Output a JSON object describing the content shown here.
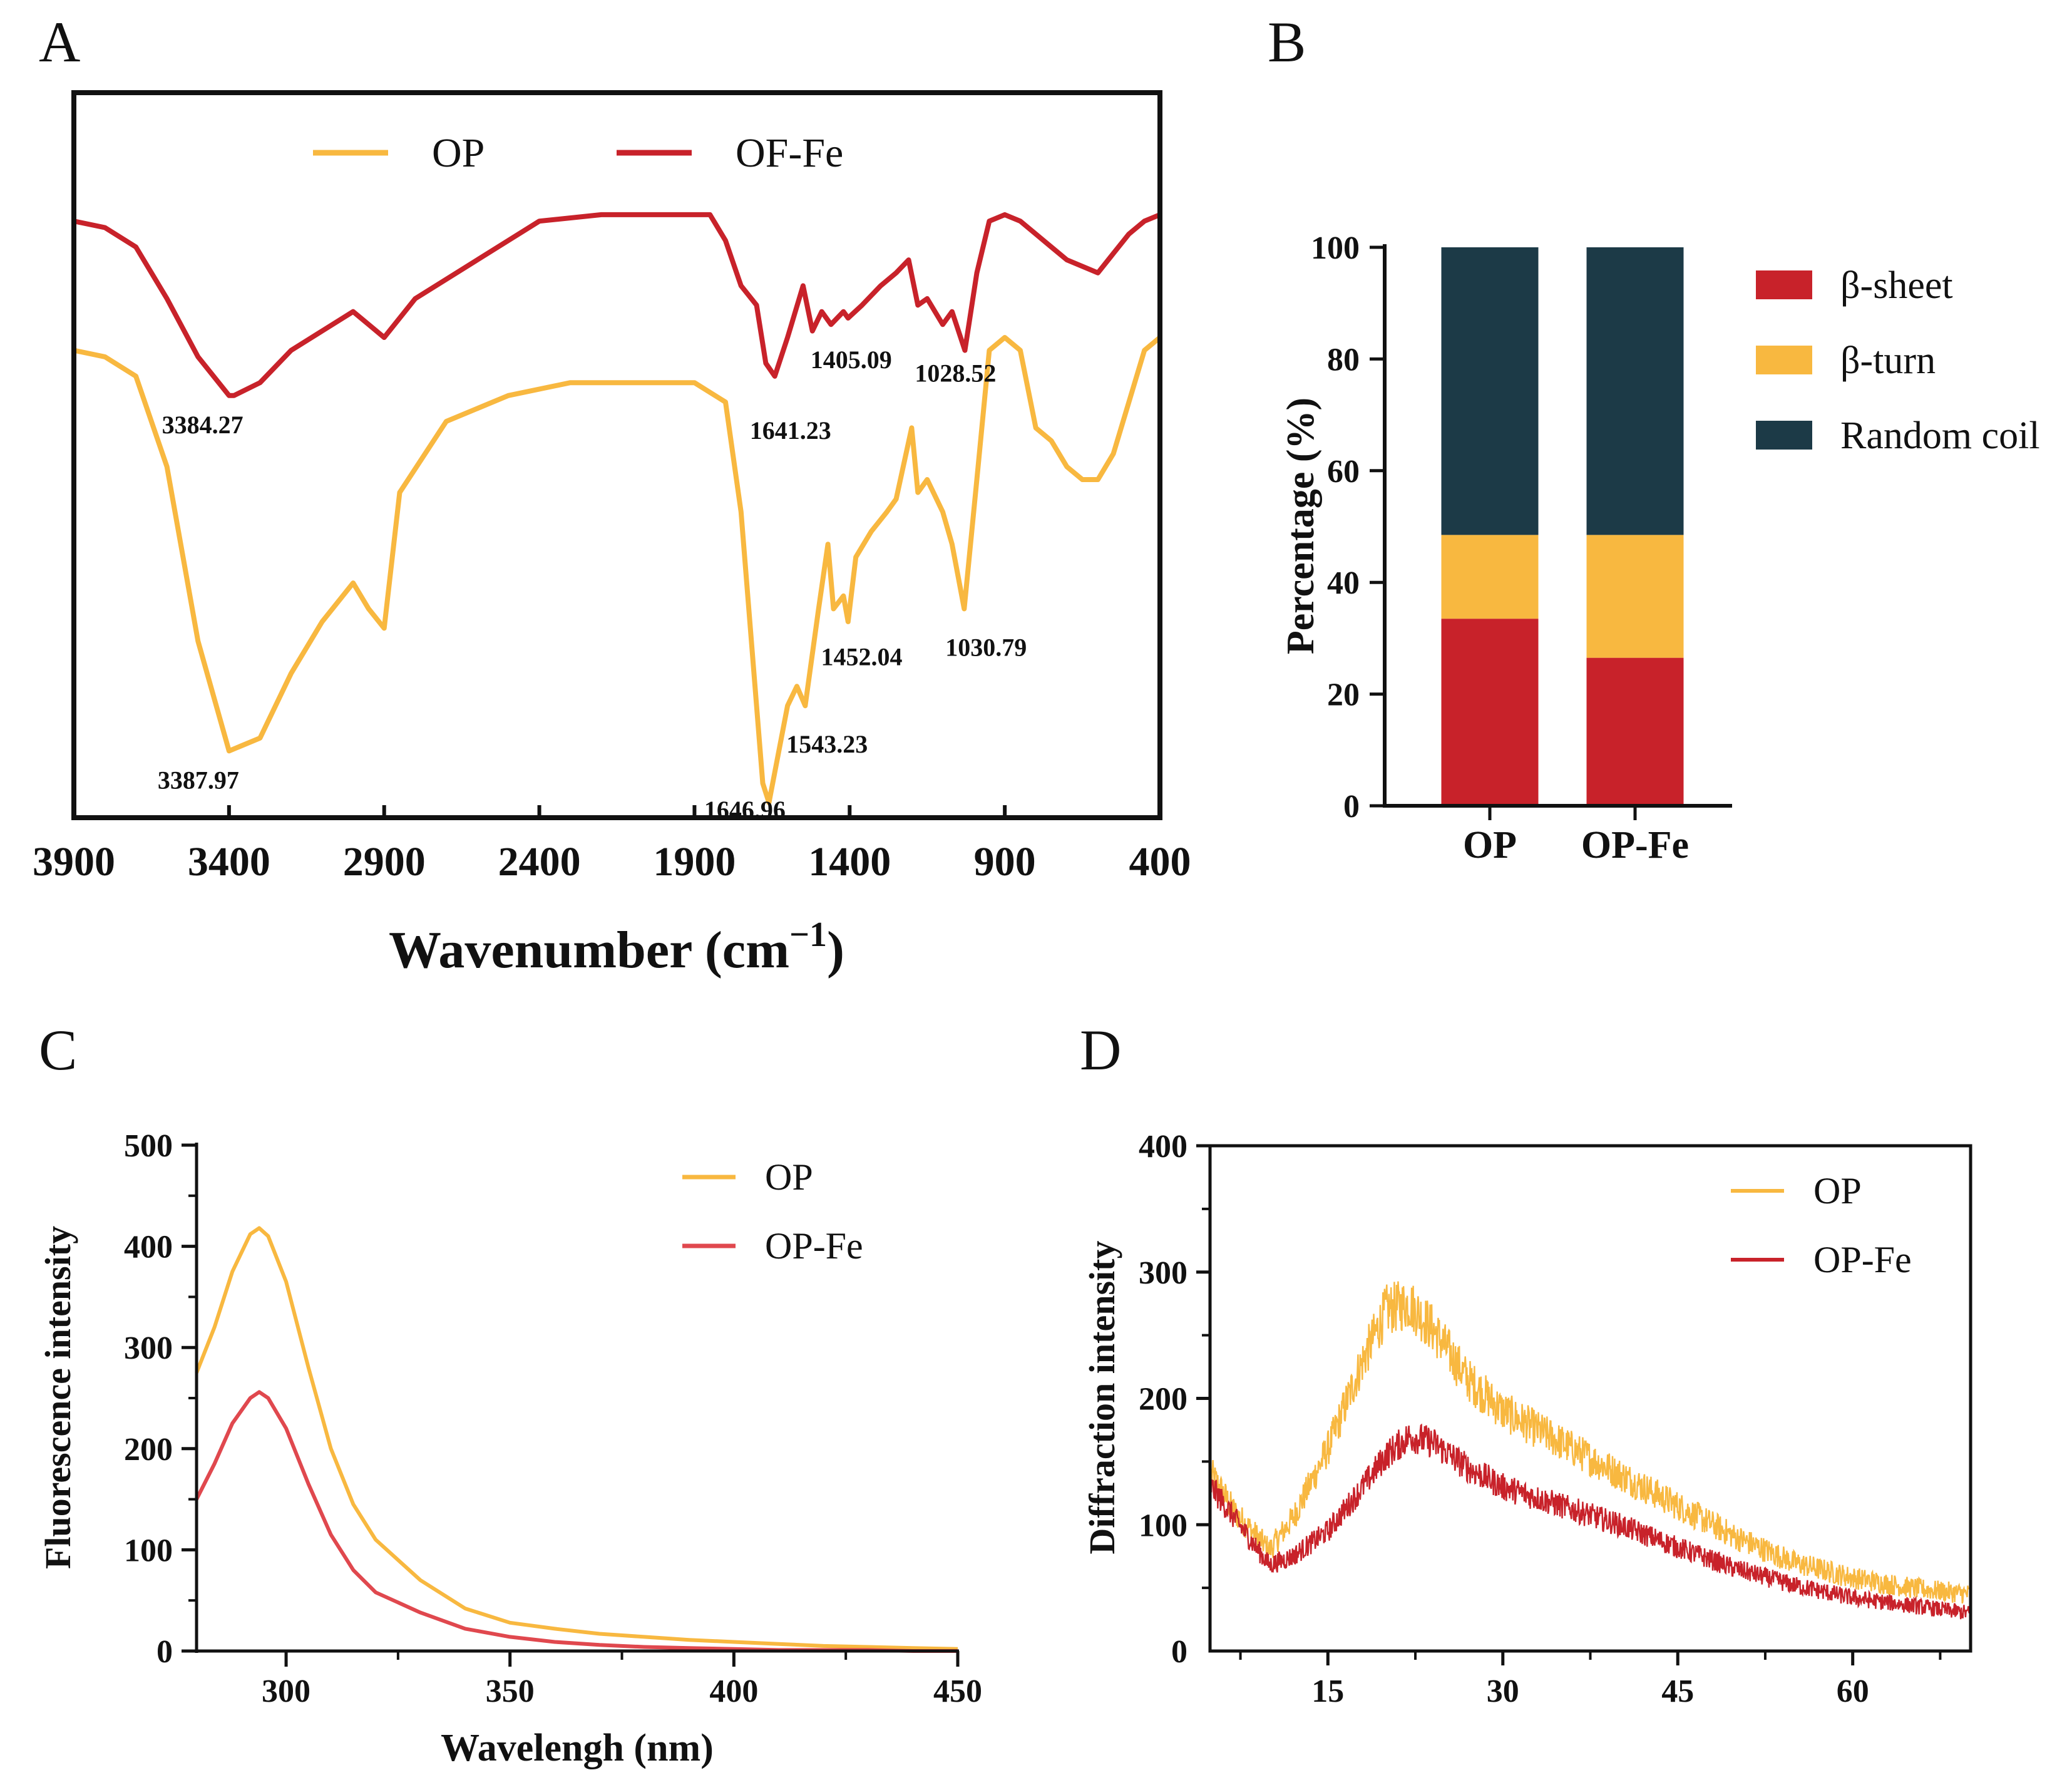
{
  "colors": {
    "op": "#F8B840",
    "opfe": "#C8222A",
    "opfe_c": "#E0484E",
    "coil": "#1C3A47",
    "axis": "#111111"
  },
  "chart_data": [
    {
      "panel": "A",
      "type": "line",
      "xlabel": "Wavenumber (cm",
      "xlabel_sup": "−1",
      "xlabel_close": ")",
      "xlim": [
        3900,
        400
      ],
      "xticks": [
        3900,
        3400,
        2900,
        2400,
        1900,
        1400,
        900,
        400
      ],
      "ylim": [
        0,
        100
      ],
      "legend": [
        {
          "name": "OP",
          "color": "#F8B840"
        },
        {
          "name": "OF-Fe",
          "color": "#C8222A"
        }
      ],
      "series": [
        {
          "name": "OP",
          "color": "#F8B840",
          "points": [
            [
              3900,
              70
            ],
            [
              3800,
              69
            ],
            [
              3700,
              66
            ],
            [
              3600,
              52
            ],
            [
              3500,
              25
            ],
            [
              3400,
              8
            ],
            [
              3300,
              10
            ],
            [
              3200,
              20
            ],
            [
              3100,
              28
            ],
            [
              3000,
              34
            ],
            [
              2950,
              30
            ],
            [
              2900,
              27
            ],
            [
              2850,
              48
            ],
            [
              2700,
              59
            ],
            [
              2500,
              63
            ],
            [
              2300,
              65
            ],
            [
              2100,
              65
            ],
            [
              1900,
              65
            ],
            [
              1800,
              62
            ],
            [
              1750,
              45
            ],
            [
              1700,
              15
            ],
            [
              1680,
              3
            ],
            [
              1660,
              0
            ],
            [
              1640,
              5
            ],
            [
              1600,
              15
            ],
            [
              1570,
              18
            ],
            [
              1543.23,
              15
            ],
            [
              1500,
              30
            ],
            [
              1470,
              40
            ],
            [
              1452.04,
              30
            ],
            [
              1420,
              32
            ],
            [
              1405,
              28
            ],
            [
              1380,
              38
            ],
            [
              1330,
              42
            ],
            [
              1280,
              45
            ],
            [
              1250,
              47
            ],
            [
              1200,
              58
            ],
            [
              1180,
              48
            ],
            [
              1150,
              50
            ],
            [
              1100,
              45
            ],
            [
              1070,
              40
            ],
            [
              1030.79,
              30
            ],
            [
              990,
              50
            ],
            [
              950,
              70
            ],
            [
              900,
              72
            ],
            [
              850,
              70
            ],
            [
              800,
              58
            ],
            [
              750,
              56
            ],
            [
              700,
              52
            ],
            [
              650,
              50
            ],
            [
              600,
              50
            ],
            [
              550,
              54
            ],
            [
              500,
              62
            ],
            [
              450,
              70
            ],
            [
              400,
              72
            ]
          ]
        },
        {
          "name": "OF-Fe",
          "color": "#C8222A",
          "points": [
            [
              3900,
              90
            ],
            [
              3800,
              89
            ],
            [
              3700,
              86
            ],
            [
              3600,
              78
            ],
            [
              3500,
              69
            ],
            [
              3400,
              63
            ],
            [
              3384.27,
              63
            ],
            [
              3300,
              65
            ],
            [
              3200,
              70
            ],
            [
              3100,
              73
            ],
            [
              3000,
              76
            ],
            [
              2950,
              74
            ],
            [
              2900,
              72
            ],
            [
              2800,
              78
            ],
            [
              2600,
              84
            ],
            [
              2400,
              90
            ],
            [
              2200,
              91
            ],
            [
              2000,
              91
            ],
            [
              1850,
              91
            ],
            [
              1800,
              87
            ],
            [
              1750,
              80
            ],
            [
              1700,
              77
            ],
            [
              1670,
              68
            ],
            [
              1641.23,
              66
            ],
            [
              1600,
              72
            ],
            [
              1550,
              80
            ],
            [
              1520,
              73
            ],
            [
              1490,
              76
            ],
            [
              1460,
              74
            ],
            [
              1420,
              76
            ],
            [
              1405.09,
              75
            ],
            [
              1360,
              77
            ],
            [
              1300,
              80
            ],
            [
              1250,
              82
            ],
            [
              1210,
              84
            ],
            [
              1180,
              77
            ],
            [
              1150,
              78
            ],
            [
              1100,
              74
            ],
            [
              1070,
              76
            ],
            [
              1028.52,
              70
            ],
            [
              990,
              82
            ],
            [
              950,
              90
            ],
            [
              900,
              91
            ],
            [
              850,
              90
            ],
            [
              800,
              88
            ],
            [
              750,
              86
            ],
            [
              700,
              84
            ],
            [
              650,
              83
            ],
            [
              600,
              82
            ],
            [
              550,
              85
            ],
            [
              500,
              88
            ],
            [
              450,
              90
            ],
            [
              400,
              91
            ]
          ]
        }
      ],
      "annotations": [
        {
          "text": "3384.27",
          "x": 3384.27,
          "y": 63,
          "dx": -115,
          "dy": 60
        },
        {
          "text": "3387.97",
          "x": 3387.97,
          "y": 8,
          "dx": -120,
          "dy": 60
        },
        {
          "text": "1641.23",
          "x": 1641.23,
          "y": 66,
          "dx": -40,
          "dy": 100
        },
        {
          "text": "1405.09",
          "x": 1405.09,
          "y": 75,
          "dx": -60,
          "dy": 80
        },
        {
          "text": "1028.52",
          "x": 1028.52,
          "y": 70,
          "dx": -80,
          "dy": 50
        },
        {
          "text": "1030.79",
          "x": 1030.79,
          "y": 30,
          "dx": -30,
          "dy": 75
        },
        {
          "text": "1452.04",
          "x": 1452.04,
          "y": 30,
          "dx": -20,
          "dy": 90
        },
        {
          "text": "1543.23",
          "x": 1543.23,
          "y": 15,
          "dx": -30,
          "dy": 75
        },
        {
          "text": "1646.96",
          "x": 1646.96,
          "y": 0,
          "dx": -110,
          "dy": 25
        }
      ]
    },
    {
      "panel": "B",
      "type": "bar",
      "stacked": true,
      "ylabel": "Percentage (%)",
      "ylim": [
        0,
        100
      ],
      "yticks": [
        0,
        20,
        40,
        60,
        80,
        100
      ],
      "categories": [
        "OP",
        "OP-Fe"
      ],
      "series": [
        {
          "name": "β-sheet",
          "color": "#C8222A",
          "values": [
            33.5,
            26.5
          ]
        },
        {
          "name": "β-turn",
          "color": "#F8B840",
          "values": [
            15,
            22
          ]
        },
        {
          "name": "Random coil",
          "color": "#1C3A47",
          "values": [
            51.5,
            51.5
          ]
        }
      ]
    },
    {
      "panel": "C",
      "type": "line",
      "xlabel": "Wavelengh (nm)",
      "ylabel": "Fluorescence intensity",
      "xlim": [
        280,
        450
      ],
      "ylim": [
        0,
        500
      ],
      "xticks": [
        300,
        350,
        400,
        450
      ],
      "yticks": [
        0,
        100,
        200,
        300,
        400,
        500
      ],
      "legend": [
        {
          "name": "OP",
          "color": "#F8B840"
        },
        {
          "name": "OP-Fe",
          "color": "#E0484E"
        }
      ],
      "series": [
        {
          "name": "OP",
          "color": "#F8B840",
          "points": [
            [
              280,
              275
            ],
            [
              284,
              320
            ],
            [
              288,
              375
            ],
            [
              292,
              412
            ],
            [
              294,
              418
            ],
            [
              296,
              410
            ],
            [
              300,
              365
            ],
            [
              305,
              280
            ],
            [
              310,
              200
            ],
            [
              315,
              145
            ],
            [
              320,
              110
            ],
            [
              330,
              70
            ],
            [
              340,
              42
            ],
            [
              350,
              28
            ],
            [
              360,
              22
            ],
            [
              370,
              17
            ],
            [
              380,
              14
            ],
            [
              390,
              11
            ],
            [
              400,
              9
            ],
            [
              410,
              7
            ],
            [
              420,
              5
            ],
            [
              430,
              4
            ],
            [
              440,
              3
            ],
            [
              450,
              2
            ]
          ]
        },
        {
          "name": "OP-Fe",
          "color": "#E0484E",
          "points": [
            [
              280,
              150
            ],
            [
              284,
              185
            ],
            [
              288,
              225
            ],
            [
              292,
              250
            ],
            [
              294,
              256
            ],
            [
              296,
              250
            ],
            [
              300,
              220
            ],
            [
              305,
              165
            ],
            [
              310,
              115
            ],
            [
              315,
              80
            ],
            [
              320,
              58
            ],
            [
              330,
              38
            ],
            [
              340,
              22
            ],
            [
              350,
              14
            ],
            [
              360,
              9
            ],
            [
              370,
              6
            ],
            [
              380,
              4
            ],
            [
              390,
              3
            ],
            [
              400,
              2
            ],
            [
              410,
              1
            ],
            [
              420,
              1
            ],
            [
              430,
              1
            ],
            [
              440,
              0
            ],
            [
              450,
              0
            ]
          ]
        }
      ]
    },
    {
      "panel": "D",
      "type": "line",
      "ylabel": "Diffraction intensity",
      "xlim": [
        5,
        70
      ],
      "ylim": [
        0,
        400
      ],
      "xticks": [
        15,
        30,
        45,
        60
      ],
      "yticks": [
        100,
        200,
        300,
        400
      ],
      "y_zero_label": "0",
      "legend": [
        {
          "name": "OP",
          "color": "#F8B840"
        },
        {
          "name": "OP-Fe",
          "color": "#C8222A"
        }
      ],
      "series": [
        {
          "name": "OP",
          "color": "#F8B840",
          "noise": 14,
          "points": [
            [
              5,
              140
            ],
            [
              7,
              110
            ],
            [
              9,
              90
            ],
            [
              10,
              80
            ],
            [
              12,
              105
            ],
            [
              15,
              160
            ],
            [
              18,
              230
            ],
            [
              20,
              270
            ],
            [
              22,
              275
            ],
            [
              24,
              255
            ],
            [
              27,
              215
            ],
            [
              30,
              190
            ],
            [
              35,
              165
            ],
            [
              40,
              140
            ],
            [
              45,
              115
            ],
            [
              50,
              90
            ],
            [
              55,
              70
            ],
            [
              60,
              58
            ],
            [
              65,
              50
            ],
            [
              70,
              45
            ]
          ]
        },
        {
          "name": "OP-Fe",
          "color": "#C8222A",
          "noise": 12,
          "points": [
            [
              5,
              130
            ],
            [
              7,
              105
            ],
            [
              9,
              80
            ],
            [
              10,
              68
            ],
            [
              12,
              75
            ],
            [
              15,
              95
            ],
            [
              18,
              130
            ],
            [
              20,
              155
            ],
            [
              22,
              170
            ],
            [
              24,
              165
            ],
            [
              27,
              145
            ],
            [
              30,
              130
            ],
            [
              35,
              115
            ],
            [
              40,
              100
            ],
            [
              45,
              82
            ],
            [
              50,
              65
            ],
            [
              55,
              52
            ],
            [
              60,
              42
            ],
            [
              65,
              36
            ],
            [
              70,
              30
            ]
          ]
        }
      ]
    }
  ]
}
